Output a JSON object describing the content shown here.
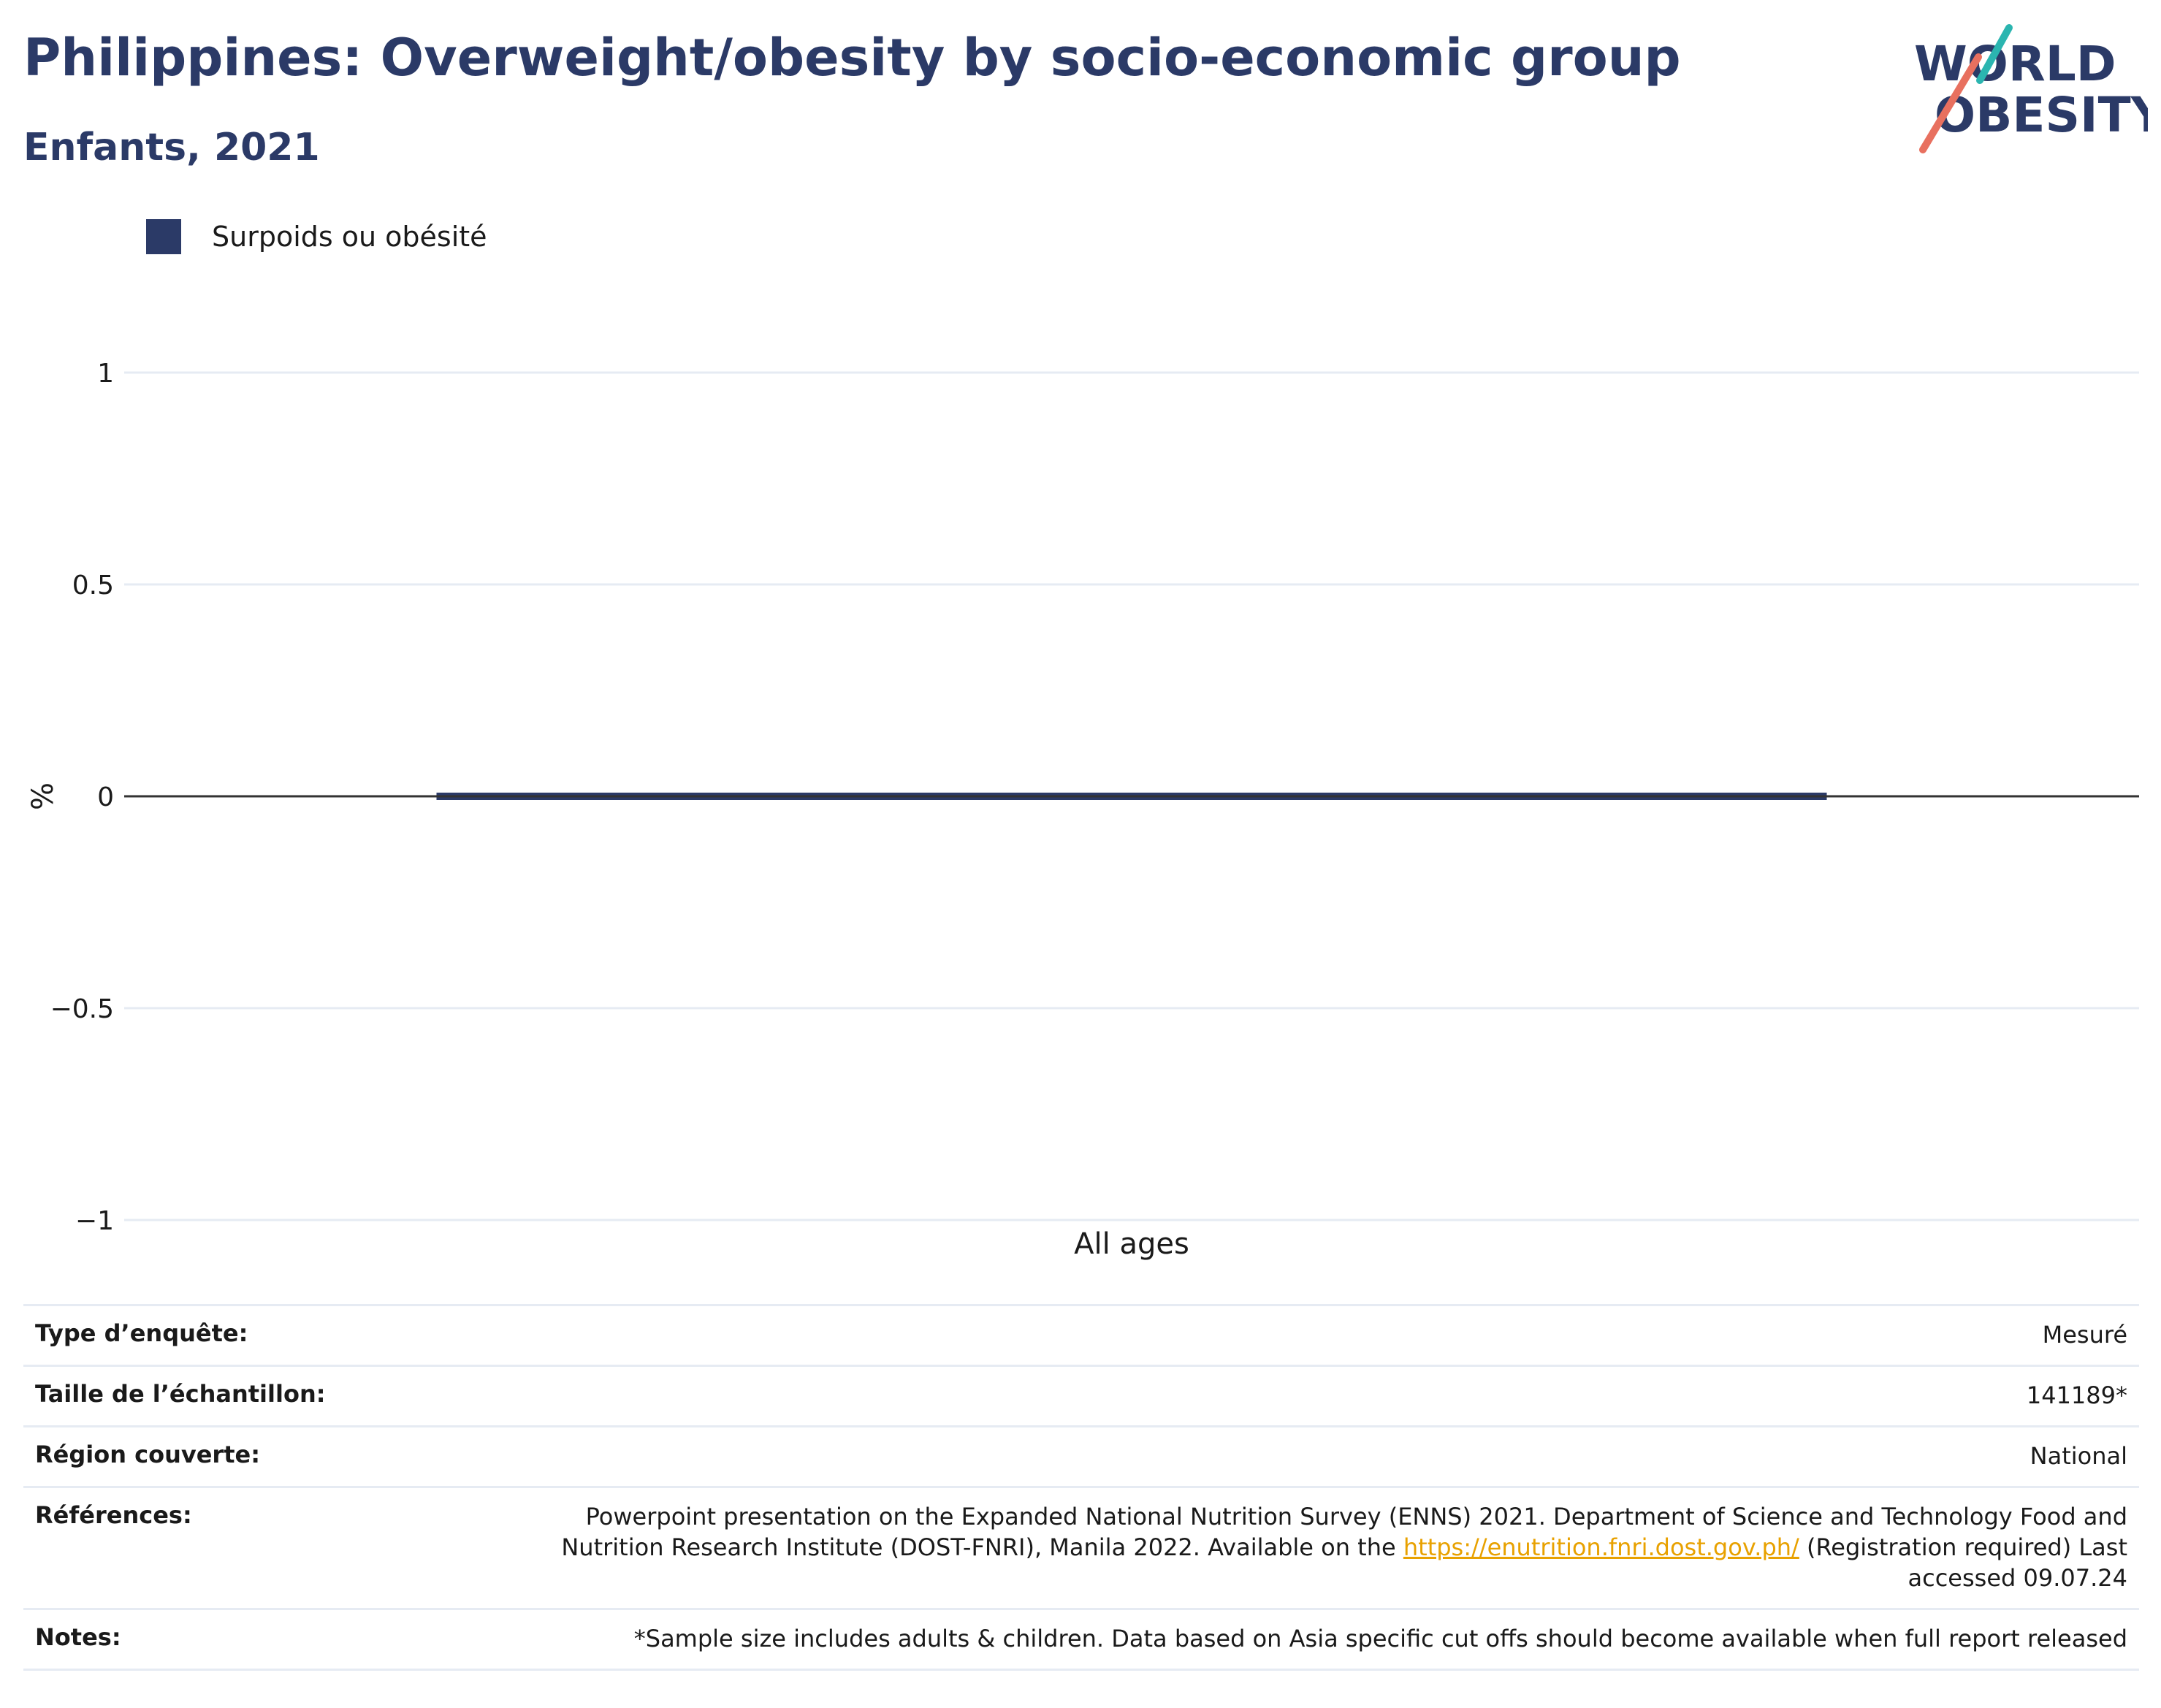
{
  "header": {
    "title": "Philippines: Overweight/obesity by socio-economic group",
    "subtitle": "Enfants, 2021"
  },
  "logo": {
    "line1": "WORLD",
    "line2": "OBESITY",
    "colors": {
      "text": "#2b3a67",
      "teal": "#2bb5b0",
      "coral": "#e8705f"
    }
  },
  "chart_data": {
    "type": "bar",
    "categories": [
      "All ages"
    ],
    "series": [
      {
        "name": "Surpoids ou obésité",
        "values": [
          0
        ],
        "color": "#2b3a67"
      }
    ],
    "ylabel": "%",
    "xlabel": "",
    "ylim": [
      -1,
      1
    ],
    "yticks": [
      1,
      0.5,
      0,
      -0.5,
      -1
    ],
    "ytick_labels": [
      "1",
      "0.5",
      "0",
      "−0.5",
      "−1"
    ],
    "grid": true,
    "legend": "top-left"
  },
  "meta": {
    "survey_type": {
      "label": "Type d’enquête:",
      "value": "Mesuré"
    },
    "sample_size": {
      "label": "Taille de l’échantillon:",
      "value": "141189*"
    },
    "region": {
      "label": "Région couverte:",
      "value": "National"
    },
    "references": {
      "label": "Références:",
      "text_before": "Powerpoint presentation on the Expanded National Nutrition Survey (ENNS) 2021. Department of Science and Technology Food and Nutrition Research Institute (DOST-FNRI), Manila 2022. Available on the ",
      "link": "https://enutrition.fnri.dost.gov.ph/",
      "text_after": " (Registration required) Last accessed 09.07.24"
    },
    "notes": {
      "label": "Notes:",
      "value": "*Sample size includes adults & children. Data based on Asia specific cut offs should become available when full report released"
    }
  }
}
